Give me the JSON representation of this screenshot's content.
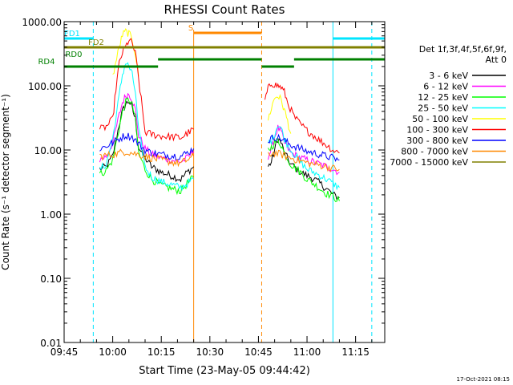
{
  "chart_data": {
    "type": "line",
    "title": "RHESSI Count Rates",
    "xlabel": "Start Time (23-May-05 09:44:42)",
    "ylabel": "Count Rate (s⁻¹ detector segment⁻¹)",
    "yscale": "log",
    "ylim": [
      0.01,
      1000
    ],
    "xlim": [
      "09:45",
      "11:24"
    ],
    "x_ticks": [
      "09:45",
      "10:00",
      "10:15",
      "10:30",
      "10:45",
      "11:00",
      "11:15"
    ],
    "y_ticks": [
      "0.01",
      "0.10",
      "1.00",
      "10.00",
      "100.00",
      "1000.00"
    ],
    "legend_title": [
      "Det 1f,3f,4f,5f,6f,9f,",
      "Att 0"
    ],
    "legend_position": "right",
    "timestamp": "17-Oct-2021 08:15",
    "series": [
      {
        "name": "3 - 6 keV",
        "color": "#000000",
        "pass1": {
          "x": [
            "09:56",
            "09:58",
            "10:00",
            "10:02",
            "10:03",
            "10:04",
            "10:05",
            "10:06",
            "10:07",
            "10:08",
            "10:10",
            "10:12",
            "10:15",
            "10:18",
            "10:21",
            "10:23",
            "10:25"
          ],
          "y": [
            5.0,
            5.5,
            8,
            25,
            40,
            52,
            58,
            45,
            30,
            11,
            7.5,
            5.5,
            4.5,
            4.0,
            3.5,
            4.5,
            5.5
          ]
        },
        "pass2": {
          "x": [
            "10:48",
            "10:49",
            "10:50",
            "10:51",
            "10:52",
            "10:53",
            "10:55",
            "10:58",
            "11:00",
            "11:02",
            "11:04",
            "11:06",
            "11:08",
            "11:10"
          ],
          "y": [
            5.5,
            6.5,
            10,
            15,
            13,
            9,
            6,
            4.5,
            4.0,
            3.6,
            3.0,
            2.5,
            2.0,
            1.8
          ]
        }
      },
      {
        "name": "6 - 12 keV",
        "color": "#ff00ff",
        "pass1": {
          "x": [
            "09:56",
            "09:58",
            "10:00",
            "10:02",
            "10:03",
            "10:04",
            "10:05",
            "10:06",
            "10:07",
            "10:08",
            "10:10",
            "10:12",
            "10:15",
            "10:18",
            "10:21",
            "10:23",
            "10:25"
          ],
          "y": [
            7,
            8,
            13,
            35,
            55,
            70,
            75,
            62,
            42,
            17,
            10.5,
            8.5,
            7.5,
            7.0,
            6.5,
            7.5,
            9.5
          ]
        },
        "pass2": {
          "x": [
            "10:48",
            "10:49",
            "10:50",
            "10:51",
            "10:52",
            "10:53",
            "10:55",
            "10:58",
            "11:00",
            "11:02",
            "11:04",
            "11:06",
            "11:08",
            "11:10"
          ],
          "y": [
            8,
            10,
            16,
            22,
            19,
            13,
            9,
            7.5,
            7.0,
            6.5,
            6.0,
            5.5,
            5.0,
            4.5
          ]
        }
      },
      {
        "name": "12 - 25 keV",
        "color": "#00ff00",
        "pass1": {
          "x": [
            "09:56",
            "09:58",
            "10:00",
            "10:02",
            "10:03",
            "10:04",
            "10:05",
            "10:06",
            "10:07",
            "10:08",
            "10:10",
            "10:12",
            "10:15",
            "10:18",
            "10:21",
            "10:23",
            "10:25"
          ],
          "y": [
            4.2,
            4.8,
            7,
            22,
            38,
            55,
            62,
            50,
            32,
            9,
            5.0,
            3.5,
            2.8,
            2.5,
            2.3,
            3.0,
            3.8
          ]
        },
        "pass2": {
          "x": [
            "10:48",
            "10:49",
            "10:50",
            "10:51",
            "10:52",
            "10:53",
            "10:55",
            "10:58",
            "11:00",
            "11:02",
            "11:04",
            "11:06",
            "11:08",
            "11:10"
          ],
          "y": [
            10,
            11,
            13,
            14,
            12,
            9,
            6,
            4.5,
            3.5,
            3.0,
            2.5,
            2.1,
            1.9,
            1.6
          ]
        }
      },
      {
        "name": "25 - 50 keV",
        "color": "#00ffff",
        "pass1": {
          "x": [
            "09:56",
            "09:58",
            "10:00",
            "10:02",
            "10:03",
            "10:04",
            "10:05",
            "10:06",
            "10:07",
            "10:08",
            "10:10",
            "10:12",
            "10:15",
            "10:18",
            "10:21",
            "10:23",
            "10:25"
          ],
          "y": [
            5.0,
            6.0,
            15,
            70,
            150,
            230,
            200,
            150,
            80,
            20,
            5.5,
            3.8,
            3.2,
            2.9,
            2.6,
            3.0,
            3.5
          ]
        },
        "pass2": {
          "x": [
            "10:48",
            "10:49",
            "10:50",
            "10:51",
            "10:52",
            "10:53",
            "10:55",
            "10:58",
            "11:00",
            "11:02",
            "11:04",
            "11:06",
            "11:08",
            "11:10"
          ],
          "y": [
            13,
            14,
            18,
            25,
            22,
            15,
            10,
            6.5,
            5.0,
            4.5,
            4.0,
            3.5,
            3.0,
            2.6
          ]
        }
      },
      {
        "name": "50 - 100 keV",
        "color": "#ffff00",
        "pass1": {
          "x": [
            "10:00",
            "10:02",
            "10:03",
            "10:04",
            "10:05",
            "10:06",
            "10:07",
            "10:08"
          ],
          "y": [
            140,
            400,
            620,
            700,
            650,
            530,
            320,
            140
          ]
        },
        "pass2": {
          "x": [
            "10:48",
            "10:49",
            "10:50",
            "10:51",
            "10:52",
            "10:53",
            "10:54",
            "10:55"
          ],
          "y": [
            30,
            45,
            65,
            70,
            60,
            42,
            28,
            18
          ]
        }
      },
      {
        "name": "100 - 300 keV",
        "color": "#ff0000",
        "pass1": {
          "x": [
            "09:56",
            "09:58",
            "10:00",
            "10:01",
            "10:02",
            "10:03",
            "10:04",
            "10:05",
            "10:06",
            "10:07",
            "10:08",
            "10:10",
            "10:12",
            "10:15",
            "10:18",
            "10:21",
            "10:23",
            "10:25"
          ],
          "y": [
            21,
            23,
            30,
            90,
            220,
            330,
            400,
            520,
            460,
            320,
            130,
            19,
            17.5,
            16.5,
            16,
            15.5,
            18,
            21
          ]
        },
        "pass2": {
          "x": [
            "10:47",
            "10:48",
            "10:49",
            "10:50",
            "10:51",
            "10:52",
            "10:53",
            "10:54",
            "10:56",
            "10:58",
            "11:00",
            "11:02",
            "11:04",
            "11:06",
            "11:08",
            "11:10"
          ],
          "y": [
            60,
            90,
            110,
            105,
            100,
            95,
            80,
            55,
            33,
            25,
            20,
            17,
            14,
            12,
            10,
            9
          ]
        }
      },
      {
        "name": "300 - 800 keV",
        "color": "#0000ff",
        "pass1": {
          "x": [
            "09:56",
            "09:58",
            "10:00",
            "10:02",
            "10:04",
            "10:06",
            "10:08",
            "10:10",
            "10:12",
            "10:15",
            "10:18",
            "10:21",
            "10:23",
            "10:25"
          ],
          "y": [
            10.5,
            11.5,
            13,
            15,
            17,
            16,
            12.5,
            10,
            9.0,
            8.5,
            8.2,
            8.0,
            9.0,
            10.5
          ]
        },
        "pass2": {
          "x": [
            "10:48",
            "10:50",
            "10:52",
            "10:55",
            "10:58",
            "11:00",
            "11:02",
            "11:04",
            "11:06",
            "11:08",
            "11:10"
          ],
          "y": [
            14,
            16,
            15,
            12,
            10.5,
            9.5,
            9.0,
            8.5,
            8.0,
            7.5,
            7.0
          ]
        }
      },
      {
        "name": "800 - 7000 keV",
        "color": "#ff8800",
        "pass1": {
          "x": [
            "09:56",
            "09:58",
            "10:00",
            "10:02",
            "10:04",
            "10:06",
            "10:08",
            "10:10",
            "10:12",
            "10:15",
            "10:18",
            "10:21",
            "10:23",
            "10:25"
          ],
          "y": [
            8.0,
            8.2,
            8.5,
            9.0,
            9.5,
            9.0,
            8.5,
            8.0,
            7.5,
            7.0,
            6.5,
            6.2,
            7.0,
            8.0
          ]
        },
        "pass2": {
          "x": [
            "10:48",
            "10:50",
            "10:52",
            "10:55",
            "10:58",
            "11:00",
            "11:02",
            "11:04",
            "11:06",
            "11:08",
            "11:10"
          ],
          "y": [
            8.5,
            9.0,
            8.5,
            7.5,
            6.8,
            6.3,
            6.0,
            5.8,
            5.5,
            5.2,
            5.0
          ]
        }
      },
      {
        "name": "7000 - 15000 keV",
        "color": "#808000"
      }
    ],
    "overlays": {
      "vlines_dashed_cyan": [
        "09:54",
        "11:20"
      ],
      "vline_dashed_orange": "10:46",
      "vline_solid_orange": "10:25",
      "vline_solid_cyan": "11:08",
      "bars": [
        {
          "label": "FD1",
          "color": "#00e5ff",
          "segments": [
            [
              "09:45",
              "09:54"
            ],
            [
              "11:08",
              "11:24"
            ]
          ]
        },
        {
          "label": "S",
          "color": "#ff8800",
          "segments": [
            [
              "10:25",
              "10:46"
            ]
          ]
        },
        {
          "label": "FD2",
          "color": "#808000",
          "segments": [
            [
              "09:45",
              "11:24"
            ]
          ]
        },
        {
          "label": "RD0",
          "color": "#008000",
          "segments": [
            [
              "10:14",
              "10:46"
            ],
            [
              "10:56",
              "11:24"
            ]
          ]
        },
        {
          "label": "RD4",
          "color": "#008000",
          "segments": [
            [
              "09:45",
              "10:14"
            ],
            [
              "10:46",
              "10:56"
            ]
          ]
        }
      ]
    }
  }
}
